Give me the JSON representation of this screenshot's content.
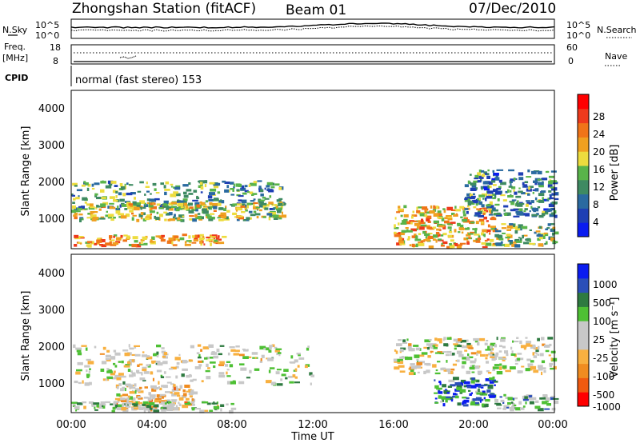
{
  "header": {
    "station": "Zhongshan Station (fitACF)",
    "beam": "Beam 01",
    "date": "07/Dec/2010"
  },
  "nsky_panel": {
    "left_label": "N.Sky",
    "right_label": "N.Search",
    "left_ticks": [
      "10^5",
      "10^0"
    ],
    "right_ticks": [
      "10^5",
      "10^0"
    ]
  },
  "freq_panel": {
    "left_label_line1": "Freq.",
    "left_label_line2": "[MHz]",
    "right_label": "Nave",
    "left_ticks": [
      "18",
      "8"
    ],
    "right_ticks": [
      "60",
      "0"
    ]
  },
  "cpid_panel": {
    "label": "CPID",
    "text": "normal (fast stereo) 153"
  },
  "x_axis": {
    "label": "Time UT",
    "ticks": [
      "00:00",
      "04:00",
      "08:00",
      "12:00",
      "16:00",
      "20:00",
      "00:00"
    ]
  },
  "power_panel": {
    "ylabel": "Slant Range [km]",
    "yticks": [
      "4000",
      "3000",
      "2000",
      "1000"
    ],
    "colorbar_label": "Power [dB]",
    "colorbar_ticks": [
      "28",
      "24",
      "20",
      "16",
      "12",
      "8",
      "4"
    ]
  },
  "velocity_panel": {
    "ylabel": "Slant Range [km]",
    "yticks": [
      "4000",
      "3000",
      "2000",
      "1000"
    ],
    "colorbar_label": "Velocity [m s⁻¹]",
    "colorbar_ticks": [
      "1000",
      "500",
      "100",
      "25",
      "-25",
      "-100",
      "-500",
      "-1000"
    ]
  },
  "colors": {
    "power_scale": [
      "#0a1cf0",
      "#1e3fb4",
      "#2a6aa0",
      "#3e8a62",
      "#59b44a",
      "#eddc3e",
      "#f0a020",
      "#f07418",
      "#ee3a1c",
      "#ff0000"
    ],
    "velocity_scale": [
      "#ff0000",
      "#f05a10",
      "#f08c20",
      "#f8b040",
      "#c8c8c8",
      "#c8c8c8",
      "#4ec034",
      "#2e7a40",
      "#2b4fb8",
      "#0a1cf0"
    ]
  },
  "chart_data": {
    "type": "heatmap",
    "title": "Zhongshan Station (fitACF) Beam 01 07/Dec/2010",
    "xlabel": "Time UT",
    "x_range": [
      "00:00",
      "24:00"
    ],
    "ylabel": "Slant Range [km]",
    "y_range_km": [
      180,
      4600
    ],
    "panels": [
      {
        "name": "Power",
        "unit": "dB",
        "scale": [
          0,
          32
        ],
        "scatter_regions": [
          {
            "t_start_h": 0.0,
            "t_end_h": 10.5,
            "range_start_km": 1300,
            "range_end_km": 2100,
            "level_db": 12
          },
          {
            "t_start_h": 0.0,
            "t_end_h": 10.5,
            "range_start_km": 1000,
            "range_end_km": 1500,
            "level_db": 16
          },
          {
            "t_start_h": 0.0,
            "t_end_h": 7.5,
            "range_start_km": 300,
            "range_end_km": 600,
            "level_db": 22
          },
          {
            "t_start_h": 16.0,
            "t_end_h": 21.0,
            "range_start_km": 250,
            "range_end_km": 1400,
            "level_db": 20
          },
          {
            "t_start_h": 19.5,
            "t_end_h": 24.0,
            "range_start_km": 1100,
            "range_end_km": 2400,
            "level_db": 10
          },
          {
            "t_start_h": 21.0,
            "t_end_h": 24.0,
            "range_start_km": 300,
            "range_end_km": 900,
            "level_db": 14
          }
        ]
      },
      {
        "name": "Velocity",
        "unit": "m s⁻¹",
        "scale": [
          -1000,
          1000
        ],
        "scatter_regions": [
          {
            "t_start_h": 0.0,
            "t_end_h": 12.0,
            "range_start_km": 1000,
            "range_end_km": 2100,
            "level": 0
          },
          {
            "t_start_h": 2.0,
            "t_end_h": 6.0,
            "range_start_km": 300,
            "range_end_km": 1000,
            "level": -200
          },
          {
            "t_start_h": 0.0,
            "t_end_h": 8.0,
            "range_start_km": 250,
            "range_end_km": 500,
            "level": 150
          },
          {
            "t_start_h": 18.0,
            "t_end_h": 21.0,
            "range_start_km": 400,
            "range_end_km": 1200,
            "level": 600
          },
          {
            "t_start_h": 16.0,
            "t_end_h": 24.0,
            "range_start_km": 1300,
            "range_end_km": 2300,
            "level": 0
          },
          {
            "t_start_h": 21.0,
            "t_end_h": 24.0,
            "range_start_km": 300,
            "range_end_km": 700,
            "level": 200
          }
        ]
      }
    ]
  }
}
